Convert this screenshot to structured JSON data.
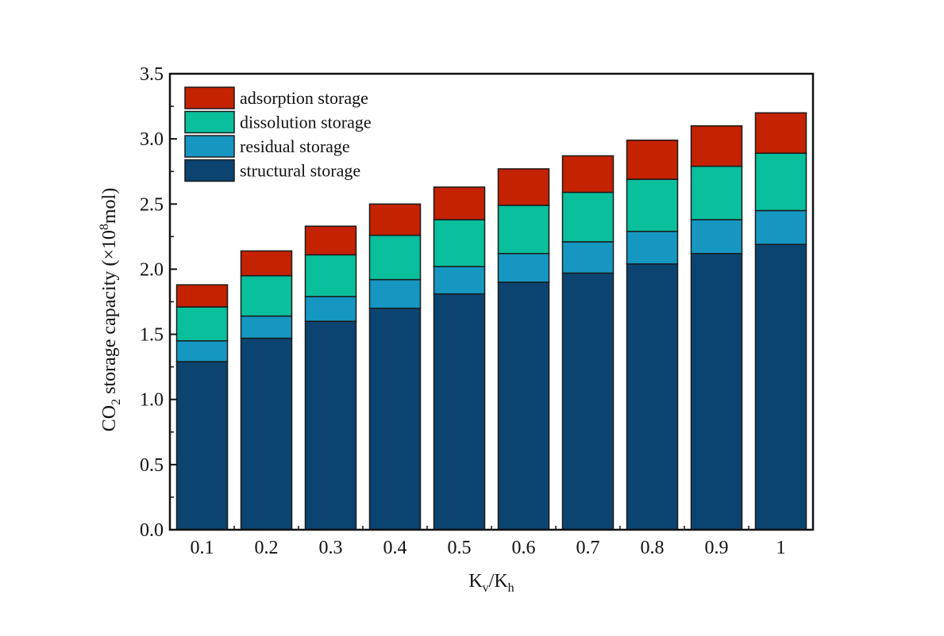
{
  "chart_data": {
    "type": "bar",
    "stacked": true,
    "title": "",
    "xlabel": "Kv/Kh",
    "xlabel_parts": {
      "k1": "K",
      "sub1": "v",
      "slash": "/",
      "k2": "K",
      "sub2": "h"
    },
    "ylabel": "CO2 storage capacity (×10^8mol)",
    "ylabel_parts": {
      "pre": "CO",
      "sub": "2",
      "mid": " storage capacity (×10",
      "sup": "8",
      "post": "mol)"
    },
    "ylim": [
      0,
      3.5
    ],
    "yticks": [
      "0.0",
      "0.5",
      "1.0",
      "1.5",
      "2.0",
      "2.5",
      "3.0",
      "3.5"
    ],
    "ytick_values": [
      0,
      0.5,
      1.0,
      1.5,
      2.0,
      2.5,
      3.0,
      3.5
    ],
    "y_minor_step": 0.25,
    "categories": [
      "0.1",
      "0.2",
      "0.3",
      "0.4",
      "0.5",
      "0.6",
      "0.7",
      "0.8",
      "0.9",
      "1"
    ],
    "grid": false,
    "legend_position": "top-left",
    "series": [
      {
        "name": "structural storage",
        "color": "#0b4470",
        "values": [
          1.29,
          1.47,
          1.6,
          1.7,
          1.81,
          1.9,
          1.97,
          2.04,
          2.12,
          2.19
        ]
      },
      {
        "name": "residual storage",
        "color": "#1697c2",
        "values": [
          0.16,
          0.17,
          0.19,
          0.22,
          0.21,
          0.22,
          0.24,
          0.25,
          0.26,
          0.26
        ]
      },
      {
        "name": "dissolution storage",
        "color": "#0abf9c",
        "values": [
          0.26,
          0.31,
          0.32,
          0.34,
          0.36,
          0.37,
          0.38,
          0.4,
          0.41,
          0.44
        ]
      },
      {
        "name": "adsorption storage",
        "color": "#c42200",
        "values": [
          0.17,
          0.19,
          0.22,
          0.24,
          0.25,
          0.28,
          0.28,
          0.3,
          0.31,
          0.31
        ]
      }
    ],
    "legend_order": [
      "adsorption storage",
      "dissolution storage",
      "residual storage",
      "structural storage"
    ]
  }
}
